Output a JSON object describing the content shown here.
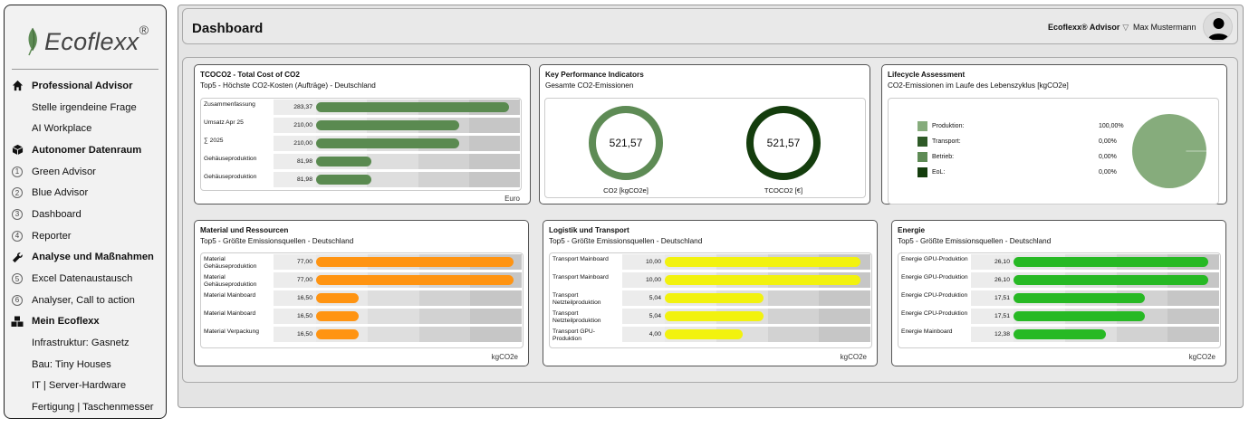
{
  "brand": {
    "name": "Ecoflexx",
    "reg": "®"
  },
  "sidebar": {
    "items": [
      {
        "label": "Professional Advisor",
        "type": "head",
        "icon": "home-icon"
      },
      {
        "label": "Stelle irgendeine Frage",
        "type": "sub"
      },
      {
        "label": "AI Workplace",
        "type": "sub"
      },
      {
        "label": "Autonomer Datenraum",
        "type": "head",
        "icon": "cube-icon"
      },
      {
        "label": "Green Advisor",
        "type": "num",
        "num": "1"
      },
      {
        "label": "Blue Advisor",
        "type": "num",
        "num": "2"
      },
      {
        "label": "Dashboard",
        "type": "num",
        "num": "3"
      },
      {
        "label": "Reporter",
        "type": "num",
        "num": "4"
      },
      {
        "label": "Analyse und Maßnahmen",
        "type": "head",
        "icon": "wrench-icon"
      },
      {
        "label": "Excel Datenaustausch",
        "type": "num",
        "num": "5"
      },
      {
        "label": "Analyser, Call to action",
        "type": "num",
        "num": "6"
      },
      {
        "label": "Mein Ecoflexx",
        "type": "head",
        "icon": "boxes-icon"
      },
      {
        "label": "Infrastruktur: Gasnetz",
        "type": "sub"
      },
      {
        "label": "Bau: Tiny Houses",
        "type": "sub"
      },
      {
        "label": "IT | Server-Hardware",
        "type": "sub"
      },
      {
        "label": "Fertigung | Taschenmesser",
        "type": "sub"
      }
    ]
  },
  "header": {
    "title": "Dashboard",
    "advisor": "Ecoflexx® Advisor",
    "advisor_chevron": "▽",
    "user": "Max Mustermann"
  },
  "cards": {
    "tcoco2": {
      "title": "TCOCO2 - Total Cost of CO2",
      "subtitle": "Top5 - Höchste CO2-Kosten (Aufträge) - Deutschland",
      "unit": "Euro",
      "color": "#5a8a50",
      "max": 300,
      "rows": [
        {
          "label": "Zusammenfassung",
          "value": "283,37",
          "v": 283.37
        },
        {
          "label": "Umsatz Apr 25",
          "value": "210,00",
          "v": 210
        },
        {
          "label": "∑ 2025",
          "value": "210,00",
          "v": 210
        },
        {
          "label": "Gehäuseproduktion",
          "value": "81,98",
          "v": 81.98
        },
        {
          "label": "Gehäuseproduktion",
          "value": "81,98",
          "v": 81.98
        }
      ]
    },
    "kpi": {
      "title": "Key Performance Indicators",
      "subtitle": "Gesamte CO2-Emissionen",
      "co2": {
        "value": "521,57",
        "label": "CO2 [kgCO2e]",
        "color": "#5e8b55"
      },
      "tcoco2": {
        "value": "521,57",
        "label": "TCOCO2 [€]",
        "color": "#143d0d"
      }
    },
    "lca": {
      "title": "Lifecycle Assessment",
      "subtitle": "CO2-Emissionen im Laufe des Lebenszyklus [kgCO2e]",
      "legend": [
        {
          "label": "Produktion:",
          "pct": "100,00%",
          "color": "#86ac7c",
          "share": 1.0
        },
        {
          "label": "Transport:",
          "pct": "0,00%",
          "color": "#2e5a27",
          "share": 0
        },
        {
          "label": "Betrieb:",
          "pct": "0,00%",
          "color": "#5e8b55",
          "share": 0
        },
        {
          "label": "EoL:",
          "pct": "0,00%",
          "color": "#143d0d",
          "share": 0
        }
      ]
    },
    "material": {
      "title": "Material und Ressourcen",
      "subtitle": "Top5 - Größte Emissionsquellen - Deutschland",
      "unit": "kgCO2e",
      "color": "#ff9412",
      "max": 80,
      "rows": [
        {
          "label": "Material Gehäuseproduktion",
          "value": "77,00",
          "v": 77
        },
        {
          "label": "Material Gehäuseproduktion",
          "value": "77,00",
          "v": 77
        },
        {
          "label": "Material Mainboard",
          "value": "16,50",
          "v": 16.5
        },
        {
          "label": "Material Mainboard",
          "value": "16,50",
          "v": 16.5
        },
        {
          "label": "Material Verpackung",
          "value": "16,50",
          "v": 16.5
        }
      ]
    },
    "logistik": {
      "title": "Logistik und Transport",
      "subtitle": "Top5 - Größte Emissionsquellen - Deutschland",
      "unit": "kgCO2e",
      "color": "#f2f20e",
      "max": 10.5,
      "rows": [
        {
          "label": "Transport Mainboard",
          "value": "10,00",
          "v": 10
        },
        {
          "label": "Transport Mainboard",
          "value": "10,00",
          "v": 10
        },
        {
          "label": "Transport Netzteilproduktion",
          "value": "5,04",
          "v": 5.04
        },
        {
          "label": "Transport Netzteilproduktion",
          "value": "5,04",
          "v": 5.04
        },
        {
          "label": "Transport GPU-Produktion",
          "value": "4,00",
          "v": 4
        }
      ]
    },
    "energie": {
      "title": "Energie",
      "subtitle": "Top5 - Größte Emissionsquellen - Deutschland",
      "unit": "kgCO2e",
      "color": "#27b924",
      "max": 27.5,
      "rows": [
        {
          "label": "Energie GPU-Produktion",
          "value": "26,10",
          "v": 26.1
        },
        {
          "label": "Energie GPU-Produktion",
          "value": "26,10",
          "v": 26.1
        },
        {
          "label": "Energie CPU-Produktion",
          "value": "17,51",
          "v": 17.51
        },
        {
          "label": "Energie CPU-Produktion",
          "value": "17,51",
          "v": 17.51
        },
        {
          "label": "Energie Mainboard",
          "value": "12,38",
          "v": 12.38
        }
      ]
    }
  }
}
